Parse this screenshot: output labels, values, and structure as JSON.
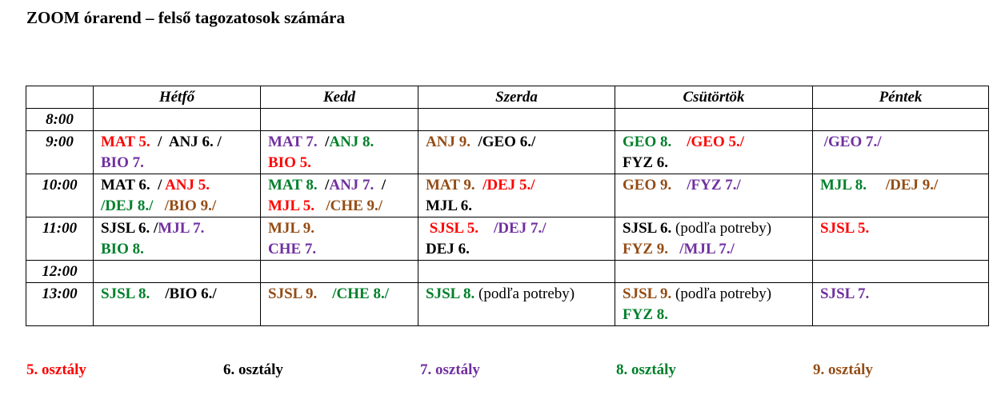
{
  "title": "ZOOM órarend – felső tagozatosok számára",
  "colors": {
    "c5": "#ff0000",
    "c6": "#000000",
    "c7": "#7030a0",
    "c8": "#00802b",
    "c9": "#944c14"
  },
  "headers": [
    "",
    "Hétfő",
    "Kedd",
    "Szerda",
    "Csütörtök",
    "Péntek"
  ],
  "rows": [
    {
      "time": "8:00",
      "height": 26,
      "cells": [
        [],
        [],
        [],
        [],
        []
      ]
    },
    {
      "time": "9:00",
      "height": 52,
      "cells": [
        [
          [
            {
              "t": "MAT 5.",
              "c": "c5"
            },
            {
              "t": "  /  ",
              "c": "c6"
            },
            {
              "t": "ANJ 6. /",
              "c": "c6"
            }
          ],
          [
            {
              "t": "BIO 7.",
              "c": "c7"
            }
          ]
        ],
        [
          [
            {
              "t": "MAT 7.",
              "c": "c7"
            },
            {
              "t": "  /",
              "c": "c6"
            },
            {
              "t": "ANJ 8.",
              "c": "c8"
            }
          ],
          [
            {
              "t": "BIO 5.",
              "c": "c5"
            }
          ]
        ],
        [
          [
            {
              "t": "ANJ 9.",
              "c": "c9"
            },
            {
              "t": "  /GEO 6./",
              "c": "c6"
            }
          ]
        ],
        [
          [
            {
              "t": "GEO 8.",
              "c": "c8"
            },
            {
              "t": "    /GEO 5./",
              "c": "c5"
            }
          ],
          [
            {
              "t": "FYZ 6.",
              "c": "c6"
            }
          ]
        ],
        [
          [
            {
              "t": " /GEO 7./",
              "c": "c7"
            }
          ]
        ]
      ]
    },
    {
      "time": "10:00",
      "height": 52,
      "cells": [
        [
          [
            {
              "t": "MAT 6.",
              "c": "c6"
            },
            {
              "t": "  / ",
              "c": "c6"
            },
            {
              "t": "ANJ 5.",
              "c": "c5"
            }
          ],
          [
            {
              "t": "/DEJ 8./",
              "c": "c8"
            },
            {
              "t": "   /BIO 9./",
              "c": "c9"
            }
          ]
        ],
        [
          [
            {
              "t": "MAT 8.",
              "c": "c8"
            },
            {
              "t": "  /",
              "c": "c6"
            },
            {
              "t": "ANJ 7.",
              "c": "c7"
            },
            {
              "t": "  /",
              "c": "c6"
            }
          ],
          [
            {
              "t": "MJL 5.",
              "c": "c5"
            },
            {
              "t": "   /CHE 9./",
              "c": "c9"
            }
          ]
        ],
        [
          [
            {
              "t": "MAT 9.",
              "c": "c9"
            },
            {
              "t": "  /DEJ 5./",
              "c": "c5"
            }
          ],
          [
            {
              "t": "MJL 6.",
              "c": "c6"
            }
          ]
        ],
        [
          [
            {
              "t": "GEO 9.",
              "c": "c9"
            },
            {
              "t": "    /FYZ 7./",
              "c": "c7"
            }
          ]
        ],
        [
          [
            {
              "t": "MJL 8.",
              "c": "c8"
            },
            {
              "t": "     /DEJ 9./",
              "c": "c9"
            }
          ]
        ]
      ]
    },
    {
      "time": "11:00",
      "height": 52,
      "cells": [
        [
          [
            {
              "t": "SJSL 6.",
              "c": "c6"
            },
            {
              "t": " /",
              "c": "c6"
            },
            {
              "t": "MJL 7.",
              "c": "c7"
            }
          ],
          [
            {
              "t": "BIO 8.",
              "c": "c8"
            }
          ]
        ],
        [
          [
            {
              "t": "MJL 9.",
              "c": "c9"
            }
          ],
          [
            {
              "t": "CHE 7.",
              "c": "c7"
            }
          ]
        ],
        [
          [
            {
              "t": " SJSL 5.",
              "c": "c5"
            },
            {
              "t": "    /DEJ 7./",
              "c": "c7"
            }
          ],
          [
            {
              "t": "DEJ 6.",
              "c": "c6"
            }
          ]
        ],
        [
          [
            {
              "t": "SJSL 6.",
              "c": "c6"
            },
            {
              "t": " (podľa potreby)",
              "c": "c6",
              "plain": true
            }
          ],
          [
            {
              "t": "FYZ 9.",
              "c": "c9"
            },
            {
              "t": "   /MJL 7./",
              "c": "c7"
            }
          ]
        ],
        [
          [
            {
              "t": "SJSL 5.",
              "c": "c5"
            }
          ]
        ]
      ]
    },
    {
      "time": "12:00",
      "height": 26,
      "cells": [
        [],
        [],
        [],
        [],
        []
      ]
    },
    {
      "time": "13:00",
      "height": 52,
      "cells": [
        [
          [
            {
              "t": "SJSL 8.",
              "c": "c8"
            },
            {
              "t": "    /BIO 6./",
              "c": "c6"
            }
          ]
        ],
        [
          [
            {
              "t": "SJSL 9.",
              "c": "c9"
            },
            {
              "t": "    /CHE 8./",
              "c": "c8"
            }
          ]
        ],
        [
          [
            {
              "t": "SJSL 8.",
              "c": "c8"
            },
            {
              "t": " (podľa potreby)",
              "c": "c6",
              "plain": true
            }
          ]
        ],
        [
          [
            {
              "t": "SJSL 9.",
              "c": "c9"
            },
            {
              "t": " (podľa potreby)",
              "c": "c6",
              "plain": true
            }
          ],
          [
            {
              "t": "FYZ 8.",
              "c": "c8"
            }
          ]
        ],
        [
          [
            {
              "t": "SJSL 7.",
              "c": "c7"
            }
          ]
        ]
      ]
    }
  ],
  "legend": [
    {
      "label": "5. osztály",
      "c": "c5"
    },
    {
      "label": "6. osztály",
      "c": "c6"
    },
    {
      "label": "7. osztály",
      "c": "c7"
    },
    {
      "label": "8. osztály",
      "c": "c8"
    },
    {
      "label": "9. osztály",
      "c": "c9"
    }
  ]
}
